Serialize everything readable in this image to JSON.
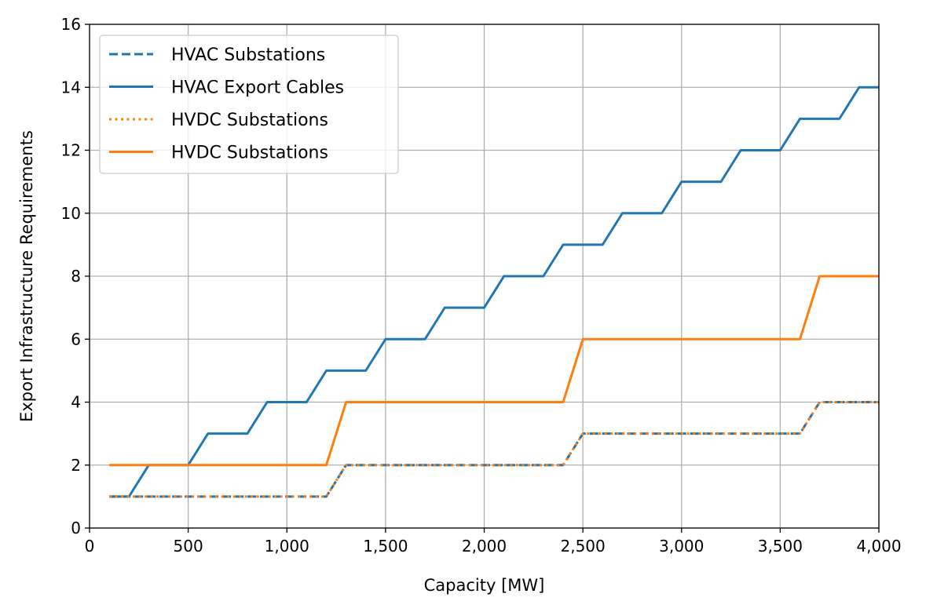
{
  "chart_data": {
    "type": "line",
    "xlabel": "Capacity [MW]",
    "ylabel": "Export Infrastructure Requirements",
    "xlim": [
      0,
      4000
    ],
    "ylim": [
      0,
      16
    ],
    "x_ticks": [
      0,
      500,
      1000,
      1500,
      2000,
      2500,
      3000,
      3500,
      4000
    ],
    "x_tick_labels": [
      "0",
      "500",
      "1,000",
      "1,500",
      "2,000",
      "2,500",
      "3,000",
      "3,500",
      "4,000"
    ],
    "y_ticks": [
      0,
      2,
      4,
      6,
      8,
      10,
      12,
      14,
      16
    ],
    "y_tick_labels": [
      "0",
      "2",
      "4",
      "6",
      "8",
      "10",
      "12",
      "14",
      "16"
    ],
    "grid": true,
    "legend_position": "top-left",
    "x": [
      100,
      200,
      300,
      400,
      500,
      600,
      700,
      800,
      900,
      1000,
      1100,
      1200,
      1300,
      1400,
      1500,
      1600,
      1700,
      1800,
      1900,
      2000,
      2100,
      2200,
      2300,
      2400,
      2500,
      2600,
      2700,
      2800,
      2900,
      3000,
      3100,
      3200,
      3300,
      3400,
      3500,
      3600,
      3700,
      3800,
      3900,
      4000
    ],
    "series": [
      {
        "name": "HVAC Substations",
        "color": "#1f77b4",
        "style": "dashed",
        "values": [
          1,
          1,
          1,
          1,
          1,
          1,
          1,
          1,
          1,
          1,
          1,
          1,
          2,
          2,
          2,
          2,
          2,
          2,
          2,
          2,
          2,
          2,
          2,
          2,
          3,
          3,
          3,
          3,
          3,
          3,
          3,
          3,
          3,
          3,
          3,
          3,
          4,
          4,
          4,
          4
        ]
      },
      {
        "name": "HVAC Export Cables",
        "color": "#1f77b4",
        "style": "solid",
        "values": [
          1,
          1,
          2,
          2,
          2,
          3,
          3,
          3,
          4,
          4,
          4,
          5,
          5,
          5,
          6,
          6,
          6,
          7,
          7,
          7,
          8,
          8,
          8,
          9,
          9,
          9,
          10,
          10,
          10,
          11,
          11,
          11,
          12,
          12,
          12,
          13,
          13,
          13,
          14,
          14
        ]
      },
      {
        "name": "HVDC Substations",
        "color": "#ff7f0e",
        "style": "dotted",
        "values": [
          1,
          1,
          1,
          1,
          1,
          1,
          1,
          1,
          1,
          1,
          1,
          1,
          2,
          2,
          2,
          2,
          2,
          2,
          2,
          2,
          2,
          2,
          2,
          2,
          3,
          3,
          3,
          3,
          3,
          3,
          3,
          3,
          3,
          3,
          3,
          3,
          4,
          4,
          4,
          4
        ]
      },
      {
        "name": "HVDC Substations",
        "color": "#ff7f0e",
        "style": "solid",
        "values": [
          2,
          2,
          2,
          2,
          2,
          2,
          2,
          2,
          2,
          2,
          2,
          2,
          4,
          4,
          4,
          4,
          4,
          4,
          4,
          4,
          4,
          4,
          4,
          4,
          6,
          6,
          6,
          6,
          6,
          6,
          6,
          6,
          6,
          6,
          6,
          6,
          8,
          8,
          8,
          8
        ]
      }
    ]
  }
}
